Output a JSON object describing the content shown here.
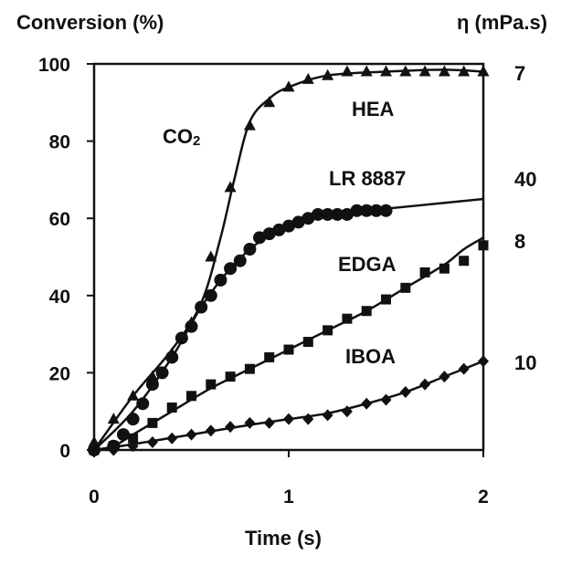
{
  "chart_data": {
    "type": "scatter",
    "ylabel": "Conversion (%)",
    "y2label": "η (mPa.s)",
    "xlabel": "Time (s)",
    "xlim": [
      0,
      2
    ],
    "ylim": [
      0,
      100
    ],
    "xticks": [
      "0",
      "1",
      "2"
    ],
    "yticks": [
      "0",
      "20",
      "40",
      "60",
      "80",
      "100"
    ],
    "grid": false,
    "legend": "none",
    "annotation": {
      "main": "CO",
      "sub": "2"
    },
    "series": [
      {
        "name": "HEA",
        "marker": "triangle",
        "viscosity": "7",
        "points": [
          [
            0,
            2
          ],
          [
            0.1,
            8
          ],
          [
            0.2,
            14
          ],
          [
            0.3,
            19
          ],
          [
            0.4,
            25
          ],
          [
            0.5,
            33
          ],
          [
            0.6,
            50
          ],
          [
            0.7,
            68
          ],
          [
            0.8,
            84
          ],
          [
            0.9,
            90
          ],
          [
            1.0,
            94
          ],
          [
            1.1,
            96
          ],
          [
            1.2,
            97
          ],
          [
            1.3,
            98
          ],
          [
            1.4,
            98
          ],
          [
            1.5,
            98
          ],
          [
            1.6,
            98
          ],
          [
            1.7,
            98
          ],
          [
            1.8,
            98
          ],
          [
            1.9,
            98
          ],
          [
            2.0,
            98
          ]
        ],
        "curve": [
          [
            0,
            0
          ],
          [
            0.2,
            14
          ],
          [
            0.4,
            26
          ],
          [
            0.55,
            38
          ],
          [
            0.65,
            55
          ],
          [
            0.72,
            70
          ],
          [
            0.8,
            85
          ],
          [
            0.9,
            91
          ],
          [
            1.0,
            94
          ],
          [
            1.2,
            97
          ],
          [
            1.5,
            98
          ],
          [
            1.8,
            98.5
          ],
          [
            2.0,
            98
          ]
        ]
      },
      {
        "name": "LR 8887",
        "marker": "circle",
        "viscosity": "40",
        "points": [
          [
            0,
            0
          ],
          [
            0.1,
            1
          ],
          [
            0.15,
            4
          ],
          [
            0.2,
            8
          ],
          [
            0.25,
            12
          ],
          [
            0.3,
            17
          ],
          [
            0.35,
            20
          ],
          [
            0.4,
            24
          ],
          [
            0.45,
            29
          ],
          [
            0.5,
            32
          ],
          [
            0.55,
            37
          ],
          [
            0.6,
            40
          ],
          [
            0.65,
            44
          ],
          [
            0.7,
            47
          ],
          [
            0.75,
            49
          ],
          [
            0.8,
            52
          ],
          [
            0.85,
            55
          ],
          [
            0.9,
            56
          ],
          [
            0.95,
            57
          ],
          [
            1.0,
            58
          ],
          [
            1.05,
            59
          ],
          [
            1.1,
            60
          ],
          [
            1.15,
            61
          ],
          [
            1.2,
            61
          ],
          [
            1.25,
            61
          ],
          [
            1.3,
            61
          ],
          [
            1.35,
            62
          ],
          [
            1.4,
            62
          ],
          [
            1.45,
            62
          ],
          [
            1.5,
            62
          ]
        ],
        "curve": [
          [
            0,
            0
          ],
          [
            0.2,
            10
          ],
          [
            0.4,
            24
          ],
          [
            0.55,
            37
          ],
          [
            0.7,
            47
          ],
          [
            0.85,
            54
          ],
          [
            1.0,
            58
          ],
          [
            1.2,
            61
          ],
          [
            1.5,
            62.5
          ],
          [
            1.8,
            64
          ],
          [
            2.0,
            65
          ]
        ]
      },
      {
        "name": "EDGA",
        "marker": "square",
        "viscosity": "8",
        "points": [
          [
            0,
            0
          ],
          [
            0.1,
            1
          ],
          [
            0.2,
            3
          ],
          [
            0.3,
            7
          ],
          [
            0.4,
            11
          ],
          [
            0.5,
            14
          ],
          [
            0.6,
            17
          ],
          [
            0.7,
            19
          ],
          [
            0.8,
            21
          ],
          [
            0.9,
            24
          ],
          [
            1.0,
            26
          ],
          [
            1.1,
            28
          ],
          [
            1.2,
            31
          ],
          [
            1.3,
            34
          ],
          [
            1.4,
            36
          ],
          [
            1.5,
            39
          ],
          [
            1.6,
            42
          ],
          [
            1.7,
            46
          ],
          [
            1.8,
            47
          ],
          [
            1.9,
            49
          ],
          [
            2.0,
            53
          ]
        ],
        "curve": [
          [
            0,
            0
          ],
          [
            0.1,
            1
          ],
          [
            0.2,
            4
          ],
          [
            0.4,
            10
          ],
          [
            0.6,
            16
          ],
          [
            0.8,
            21
          ],
          [
            1.0,
            26
          ],
          [
            1.2,
            31
          ],
          [
            1.4,
            36
          ],
          [
            1.6,
            42
          ],
          [
            1.8,
            48
          ],
          [
            1.9,
            52
          ],
          [
            2.0,
            55
          ]
        ]
      },
      {
        "name": "IBOA",
        "marker": "diamond",
        "viscosity": "10",
        "points": [
          [
            0,
            0
          ],
          [
            0.1,
            0
          ],
          [
            0.2,
            1
          ],
          [
            0.3,
            2
          ],
          [
            0.4,
            3
          ],
          [
            0.5,
            4
          ],
          [
            0.6,
            5
          ],
          [
            0.7,
            6
          ],
          [
            0.8,
            7
          ],
          [
            0.9,
            7
          ],
          [
            1.0,
            8
          ],
          [
            1.1,
            8
          ],
          [
            1.2,
            9
          ],
          [
            1.3,
            10
          ],
          [
            1.4,
            12
          ],
          [
            1.5,
            13
          ],
          [
            1.6,
            15
          ],
          [
            1.7,
            17
          ],
          [
            1.8,
            19
          ],
          [
            1.9,
            21
          ],
          [
            2.0,
            23
          ]
        ],
        "curve": [
          [
            0,
            0
          ],
          [
            0.2,
            1.5
          ],
          [
            0.5,
            4
          ],
          [
            0.8,
            6.5
          ],
          [
            1.0,
            8
          ],
          [
            1.2,
            9.5
          ],
          [
            1.4,
            12
          ],
          [
            1.6,
            15
          ],
          [
            1.8,
            19
          ],
          [
            2.0,
            23
          ]
        ]
      }
    ]
  }
}
